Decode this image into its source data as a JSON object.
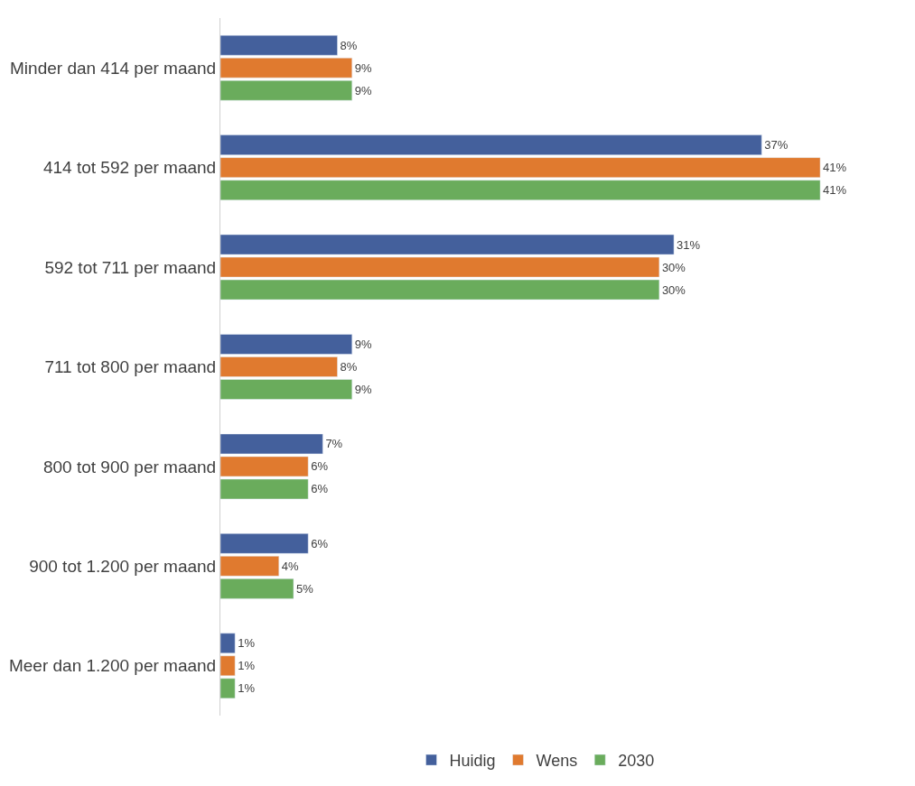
{
  "chart_data": {
    "type": "bar",
    "orientation": "horizontal",
    "categories": [
      "Minder dan 414 per maand",
      "414 tot 592 per maand",
      "592 tot 711 per maand",
      "711 tot 800 per maand",
      "800 tot 900 per maand",
      "900 tot 1.200 per maand",
      "Meer dan 1.200 per maand"
    ],
    "series": [
      {
        "name": "Huidig",
        "color": "#44609c",
        "values": [
          8,
          37,
          31,
          9,
          7,
          6,
          1
        ],
        "value_labels": [
          "8%",
          "37%",
          "31%",
          "9%",
          "7%",
          "6%",
          "1%"
        ]
      },
      {
        "name": "Wens",
        "color": "#e07a2f",
        "values": [
          9,
          41,
          30,
          8,
          6,
          4,
          1
        ],
        "value_labels": [
          "9%",
          "41%",
          "30%",
          "8%",
          "6%",
          "4%",
          "1%"
        ]
      },
      {
        "name": "2030",
        "color": "#6aac5c",
        "values": [
          9,
          41,
          30,
          9,
          6,
          5,
          1
        ],
        "value_labels": [
          "9%",
          "41%",
          "30%",
          "9%",
          "6%",
          "5%",
          "1%"
        ]
      }
    ],
    "tick_labels": "y",
    "legend": "bottom"
  }
}
